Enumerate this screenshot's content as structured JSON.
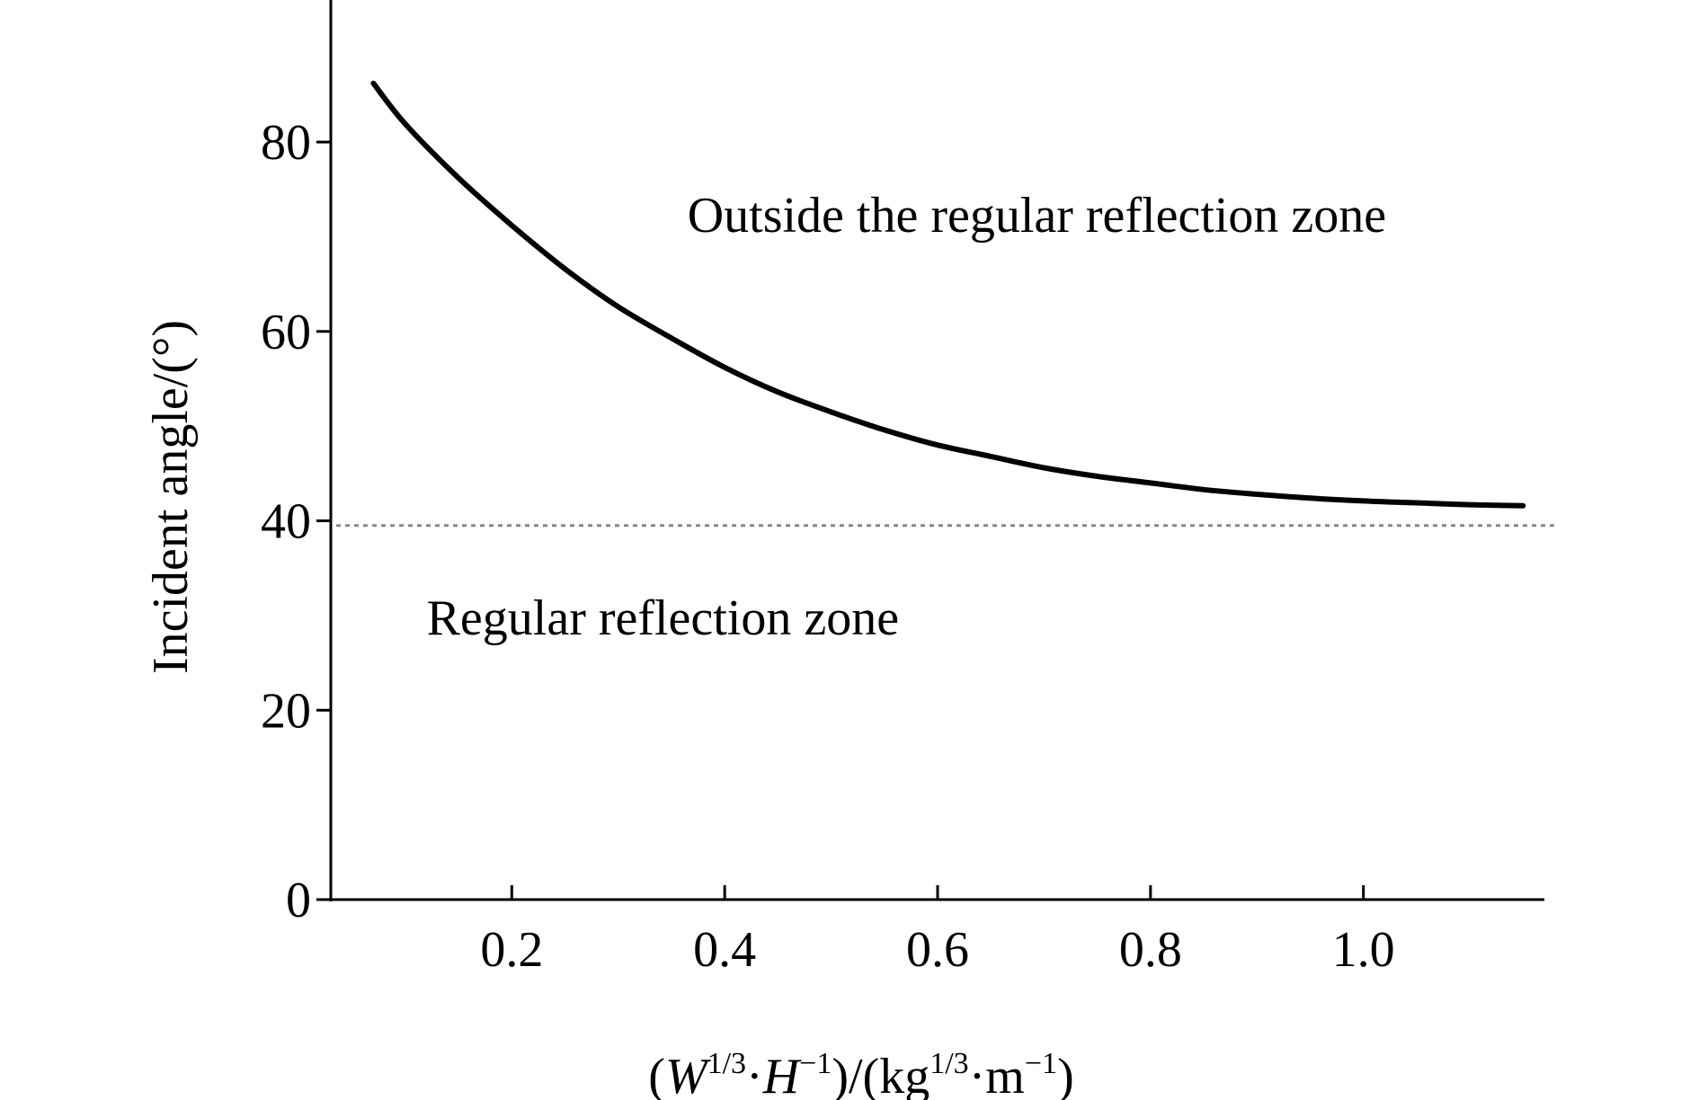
{
  "chart_data": {
    "type": "line",
    "title": "",
    "xlabel": "(W1/3·H−1)/(kg1/3·m−1)",
    "xlabel_parts": {
      "open": "(",
      "w": "W",
      "w_exp": "1/3",
      "dot1": "·",
      "h": "H",
      "h_exp": "−1",
      "mid": ")/(kg",
      "kg_exp": "1/3",
      "dot2": "·m",
      "m_exp": "−1",
      "close": ")"
    },
    "ylabel": "Incident angle/(°)",
    "xlim": [
      0.03,
      1.17
    ],
    "ylim": [
      0,
      95
    ],
    "x_ticks": [
      0.2,
      0.4,
      0.6,
      0.8,
      1.0
    ],
    "x_tick_labels": [
      "0.2",
      "0.4",
      "0.6",
      "0.8",
      "1.0"
    ],
    "y_ticks": [
      0,
      20,
      40,
      60,
      80
    ],
    "y_tick_labels": [
      "0",
      "20",
      "40",
      "60",
      "80"
    ],
    "grid": false,
    "legend": "none",
    "series": [
      {
        "x": [
          0.07,
          0.1,
          0.15,
          0.2,
          0.25,
          0.3,
          0.35,
          0.4,
          0.45,
          0.5,
          0.55,
          0.6,
          0.65,
          0.7,
          0.75,
          0.8,
          0.85,
          0.9,
          0.95,
          1.0,
          1.05,
          1.1,
          1.15
        ],
        "y": [
          86.2,
          81.9,
          76.2,
          71.2,
          66.6,
          62.6,
          59.3,
          56.2,
          53.6,
          51.5,
          49.6,
          48.0,
          46.8,
          45.6,
          44.7,
          44.0,
          43.3,
          42.8,
          42.4,
          42.1,
          41.9,
          41.7,
          41.6
        ],
        "color": "#000000"
      }
    ],
    "reference_line": {
      "y": 39.5,
      "style": "dotted",
      "color": "#888888"
    },
    "annotations": [
      {
        "text": "Outside the regular reflection zone",
        "x": 0.365,
        "y": 70.5
      },
      {
        "text": "Regular reflection zone",
        "x": 0.12,
        "y": 28
      }
    ]
  }
}
